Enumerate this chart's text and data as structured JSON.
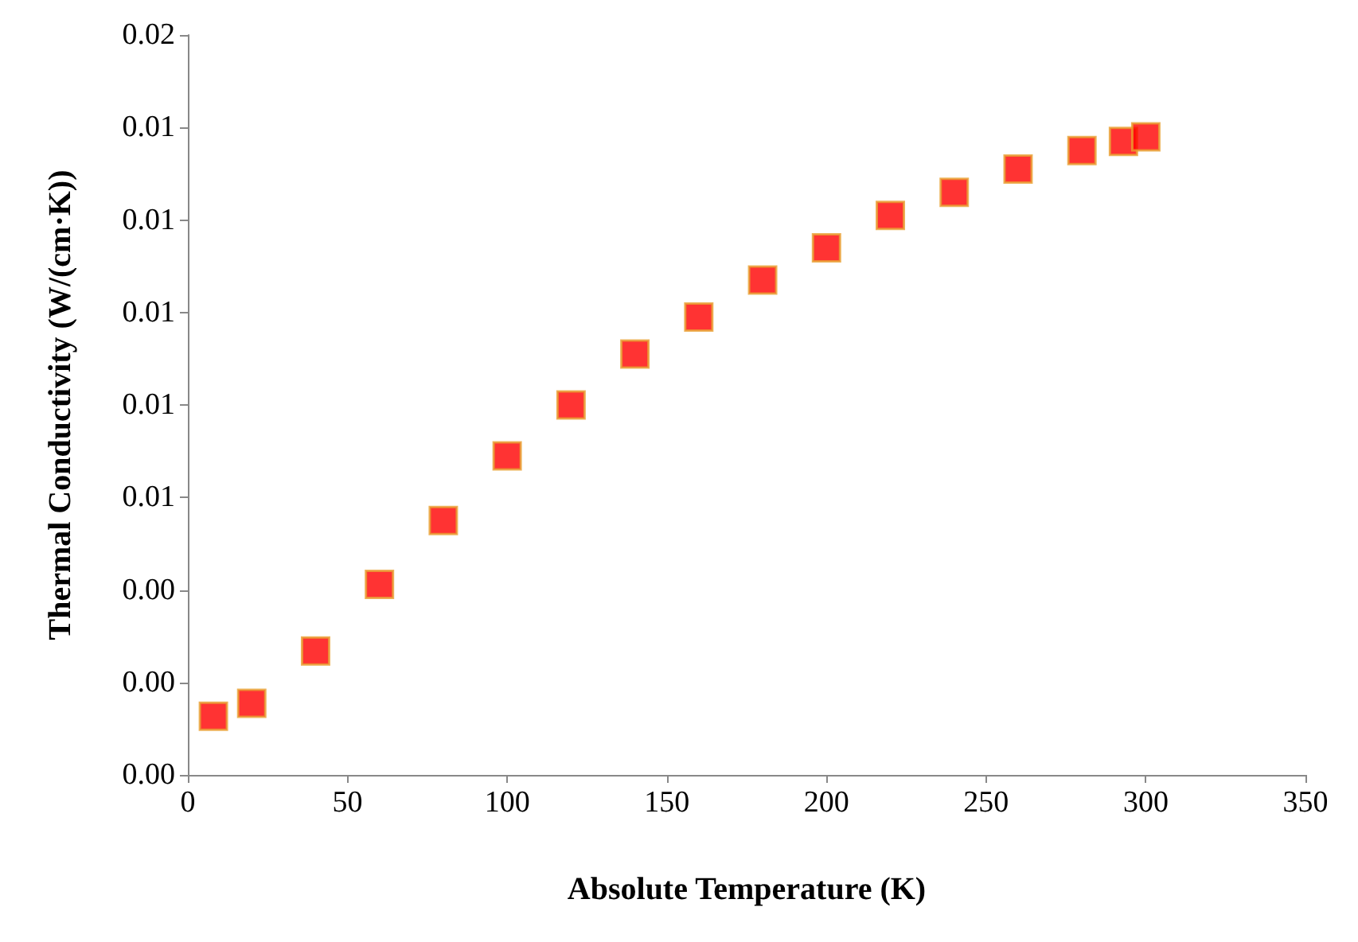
{
  "chart_data": {
    "type": "scatter",
    "xlabel": "Absolute Temperature (K)",
    "ylabel": "Thermal Conductivity (W/(cm·K))",
    "x": [
      8,
      20,
      40,
      60,
      80,
      100,
      120,
      140,
      160,
      180,
      200,
      220,
      240,
      260,
      280,
      293,
      300
    ],
    "series": [
      {
        "color": "#ff0000",
        "values": [
          0.00127,
          0.00155,
          0.00268,
          0.00412,
          0.0055,
          0.0069,
          0.008,
          0.0091,
          0.0099,
          0.0107,
          0.0114,
          0.0121,
          0.0126,
          0.0131,
          0.0135,
          0.0137,
          0.0138
        ]
      }
    ],
    "xlim": [
      0,
      350
    ],
    "xticks": [
      0,
      50,
      100,
      150,
      200,
      250,
      300,
      350
    ],
    "ylim": [
      0,
      0.016
    ],
    "yticks": [
      {
        "value": 0,
        "label": "0.00"
      },
      {
        "value": 0.002,
        "label": "0.00"
      },
      {
        "value": 0.004,
        "label": "0.00"
      },
      {
        "value": 0.006,
        "label": "0.01"
      },
      {
        "value": 0.008,
        "label": "0.01"
      },
      {
        "value": 0.01,
        "label": "0.01"
      },
      {
        "value": 0.012,
        "label": "0.01"
      },
      {
        "value": 0.014,
        "label": "0.01"
      },
      {
        "value": 0.016,
        "label": "0.02"
      }
    ],
    "grid": false,
    "marker": "square"
  }
}
